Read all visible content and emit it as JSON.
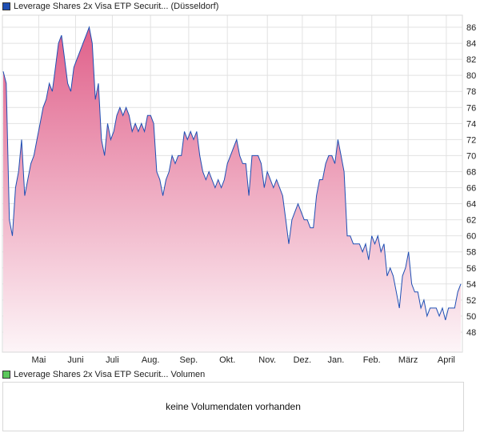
{
  "price_legend": {
    "label": "Leverage Shares 2x Visa ETP Securit... (Düsseldorf)",
    "color": "#1f4fb4"
  },
  "volume_legend": {
    "label": "Leverage Shares 2x Visa ETP Securit... Volumen",
    "color": "#5cc85c"
  },
  "volume_message": "keine Volumendaten vorhanden",
  "chart_data": {
    "type": "area",
    "title": "Leverage Shares 2x Visa ETP Securit... (Düsseldorf)",
    "xlabel": "",
    "ylabel": "",
    "ylim": [
      45.5,
      87.5
    ],
    "yticks": [
      48,
      50,
      52,
      54,
      56,
      58,
      60,
      62,
      64,
      66,
      68,
      70,
      72,
      74,
      76,
      78,
      80,
      82,
      84,
      86
    ],
    "month_labels": [
      "Mai",
      "Juni",
      "Juli",
      "Aug.",
      "Sep.",
      "Okt.",
      "Nov.",
      "Dez.",
      "Jan.",
      "Feb.",
      "März",
      "April"
    ],
    "month_positions": [
      0.079,
      0.159,
      0.239,
      0.322,
      0.405,
      0.489,
      0.576,
      0.652,
      0.725,
      0.803,
      0.882,
      0.965
    ],
    "grid": true,
    "line_color": "#1f4fb4",
    "fill_top_color": "#e0608a",
    "fill_bottom_color": "#fdf5f8",
    "values": [
      80.5,
      79,
      62,
      60,
      66,
      68,
      72,
      65,
      67,
      69,
      70,
      72,
      74,
      76,
      77,
      79,
      78,
      81,
      84,
      85,
      82,
      79,
      78,
      81,
      82,
      83,
      84,
      85,
      86,
      84,
      77,
      79,
      72,
      70,
      74,
      72,
      73,
      75,
      76,
      75,
      76,
      75,
      73,
      74,
      73,
      74,
      73,
      75,
      75,
      74,
      68,
      67,
      65,
      67,
      68,
      70,
      69,
      70,
      70,
      73,
      72,
      73,
      72,
      73,
      70,
      68,
      67,
      68,
      67,
      66,
      67,
      66,
      67,
      69,
      70,
      71,
      72,
      70,
      69,
      69,
      65,
      70,
      70,
      70,
      69,
      66,
      68,
      67,
      66,
      67,
      66,
      65,
      62,
      59,
      62,
      63,
      64,
      63,
      62,
      62,
      61,
      61,
      65,
      67,
      67,
      69,
      70,
      70,
      69,
      72,
      70,
      68,
      60,
      60,
      59,
      59,
      59,
      58,
      59,
      57,
      60,
      59,
      60,
      58,
      59,
      55,
      56,
      55,
      53,
      51,
      55,
      56,
      58,
      54,
      53,
      53,
      51,
      52,
      50,
      51,
      51,
      51,
      50,
      51,
      49.5,
      51,
      51,
      51,
      53,
      54
    ]
  }
}
